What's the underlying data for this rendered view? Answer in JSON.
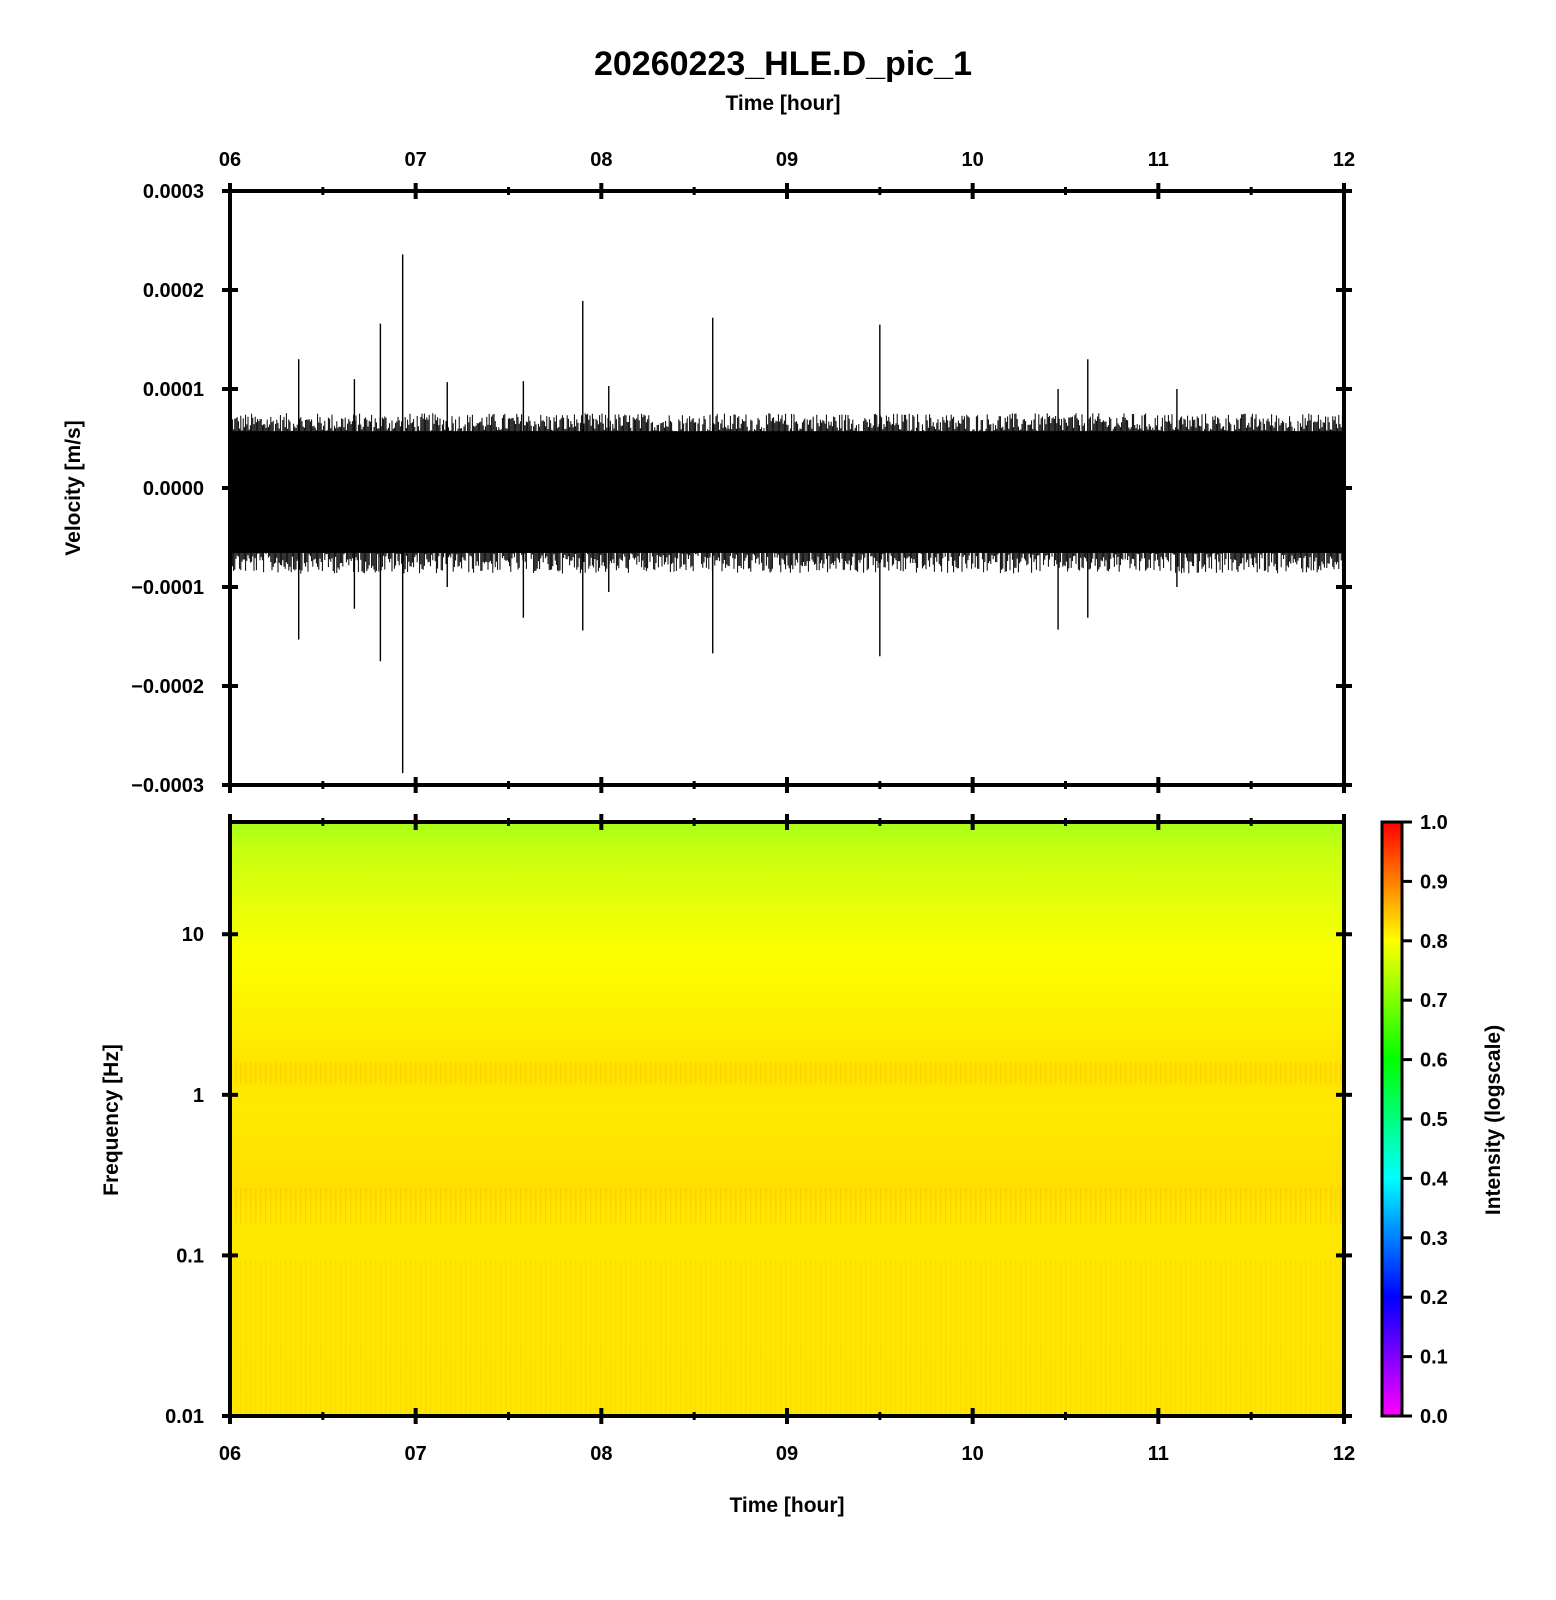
{
  "chart_data": [
    {
      "type": "line",
      "title": "20260223_HLE.D_pic_1",
      "top_xlabel": "Time [hour]",
      "ylabel": "Velocity [m/s]",
      "x_tick_labels": [
        "06",
        "07",
        "08",
        "09",
        "10",
        "11",
        "12"
      ],
      "y_tick_labels": [
        "0.0003",
        "0.0002",
        "0.0001",
        "0.0000",
        "−0.0001",
        "−0.0002",
        "−0.0003"
      ],
      "xlim": [
        6,
        12
      ],
      "ylim": [
        -0.0003,
        0.0003
      ],
      "series": [
        {
          "noise_band": {
            "upper": 7e-05,
            "lower": -8e-05
          },
          "spikes": [
            {
              "time": 6.37,
              "max": 0.00013,
              "min": -0.000153
            },
            {
              "time": 6.67,
              "max": 0.00011,
              "min": -0.000122
            },
            {
              "time": 6.81,
              "max": 0.000166,
              "min": -0.000175
            },
            {
              "time": 6.93,
              "max": 0.000236,
              "min": -0.000288
            },
            {
              "time": 7.17,
              "max": 0.000107,
              "min": -0.0001
            },
            {
              "time": 7.58,
              "max": 0.000108,
              "min": -0.000131
            },
            {
              "time": 7.9,
              "max": 0.000189,
              "min": -0.000144
            },
            {
              "time": 8.04,
              "max": 0.000103,
              "min": -0.000105
            },
            {
              "time": 8.6,
              "max": 0.000172,
              "min": -0.000167
            },
            {
              "time": 9.5,
              "max": 0.000165,
              "min": -0.00017
            },
            {
              "time": 10.46,
              "max": 0.0001,
              "min": -0.000143
            },
            {
              "time": 10.62,
              "max": 0.00013,
              "min": -0.000131
            },
            {
              "time": 11.1,
              "max": 0.0001,
              "min": -0.0001
            }
          ]
        }
      ]
    },
    {
      "type": "heatmap",
      "xlabel": "Time [hour]",
      "ylabel": "Frequency [Hz]",
      "x_tick_labels": [
        "06",
        "07",
        "08",
        "09",
        "10",
        "11",
        "12"
      ],
      "y_tick_labels": [
        "10",
        "1",
        "0.1",
        "0.01"
      ],
      "xlim": [
        6,
        12
      ],
      "ylim": [
        0.01,
        50
      ],
      "yscale": "log",
      "colorbar": {
        "label": "Intensity (logscale)",
        "range": [
          0.0,
          1.0
        ],
        "tick_labels": [
          "1.0",
          "0.9",
          "0.8",
          "0.7",
          "0.6",
          "0.5",
          "0.4",
          "0.3",
          "0.2",
          "0.1",
          "0.0"
        ],
        "colors": [
          "#ff00ff",
          "#8000ff",
          "#0000ff",
          "#0080ff",
          "#00ffff",
          "#00ff80",
          "#00ff00",
          "#80ff00",
          "#ffff00",
          "#ff8000",
          "#ff0000"
        ]
      },
      "intensity_profile": [
        {
          "frequency": 50,
          "intensity": 0.74
        },
        {
          "frequency": 20,
          "intensity": 0.77
        },
        {
          "frequency": 10,
          "intensity": 0.8
        },
        {
          "frequency": 3,
          "intensity": 0.82
        },
        {
          "frequency": 1.3,
          "intensity": 0.86
        },
        {
          "frequency": 0.5,
          "intensity": 0.84
        },
        {
          "frequency": 0.2,
          "intensity": 0.87
        },
        {
          "frequency": 0.1,
          "intensity": 0.84
        },
        {
          "frequency": 0.01,
          "intensity": 0.84
        }
      ]
    }
  ]
}
